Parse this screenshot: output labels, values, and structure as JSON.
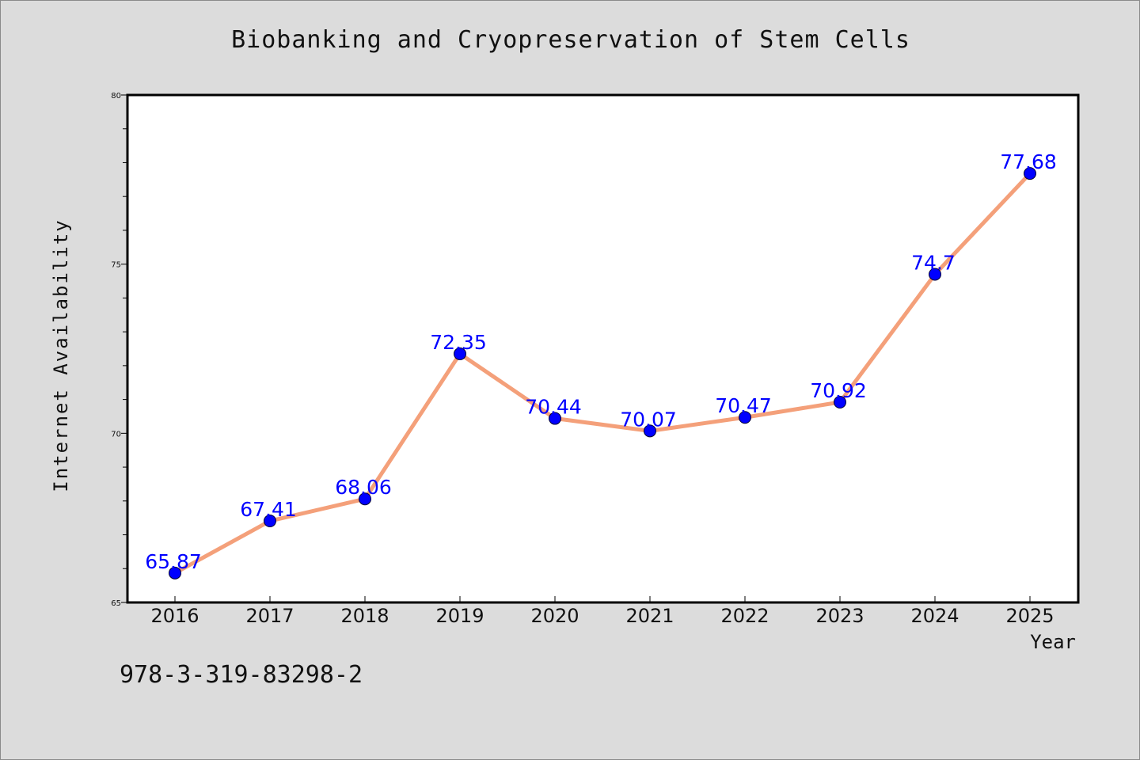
{
  "chart_data": {
    "type": "line",
    "title": "Biobanking and Cryopreservation of Stem Cells",
    "xlabel": "Year",
    "ylabel": "Internet Availability",
    "categories": [
      "2016",
      "2017",
      "2018",
      "2019",
      "2020",
      "2021",
      "2022",
      "2023",
      "2024",
      "2025"
    ],
    "values": [
      65.87,
      67.41,
      68.06,
      72.35,
      70.44,
      70.07,
      70.47,
      70.92,
      74.7,
      77.68
    ],
    "data_labels": [
      "65.87",
      "67.41",
      "68.06",
      "72.35",
      "70.44",
      "70.07",
      "70.47",
      "70.92",
      "74.7",
      "77.68"
    ],
    "ylim": [
      65,
      80
    ],
    "yticks": [
      65,
      70,
      75,
      80
    ],
    "grid": false,
    "line_color": "#f4a07a",
    "marker_color": "#0000ff",
    "label_color": "#0000ff",
    "background": "#dcdcdc",
    "plot_background": "#ffffff"
  },
  "footer": {
    "isbn": "978-3-319-83298-2"
  }
}
